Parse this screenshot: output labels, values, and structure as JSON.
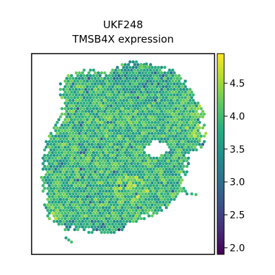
{
  "chart_data": {
    "type": "heatmap",
    "title_line1": "UKF248",
    "title_line2": "TMSB4X expression",
    "xlabel": "",
    "ylabel": "",
    "colorbar": {
      "colormap": "viridis",
      "range": [
        1.9,
        4.95
      ],
      "ticks": [
        2.0,
        2.5,
        3.0,
        3.5,
        4.0,
        4.5
      ],
      "tick_labels": [
        "2.0",
        "2.5",
        "3.0",
        "3.5",
        "4.0",
        "4.5"
      ]
    },
    "value_distribution": {
      "typical_range": [
        3.4,
        4.3
      ],
      "mean": 3.9,
      "low_region": "upper-center band and bottom edge",
      "high_region": "lower-center and right side"
    },
    "grid": false,
    "axes_ticks": false
  }
}
